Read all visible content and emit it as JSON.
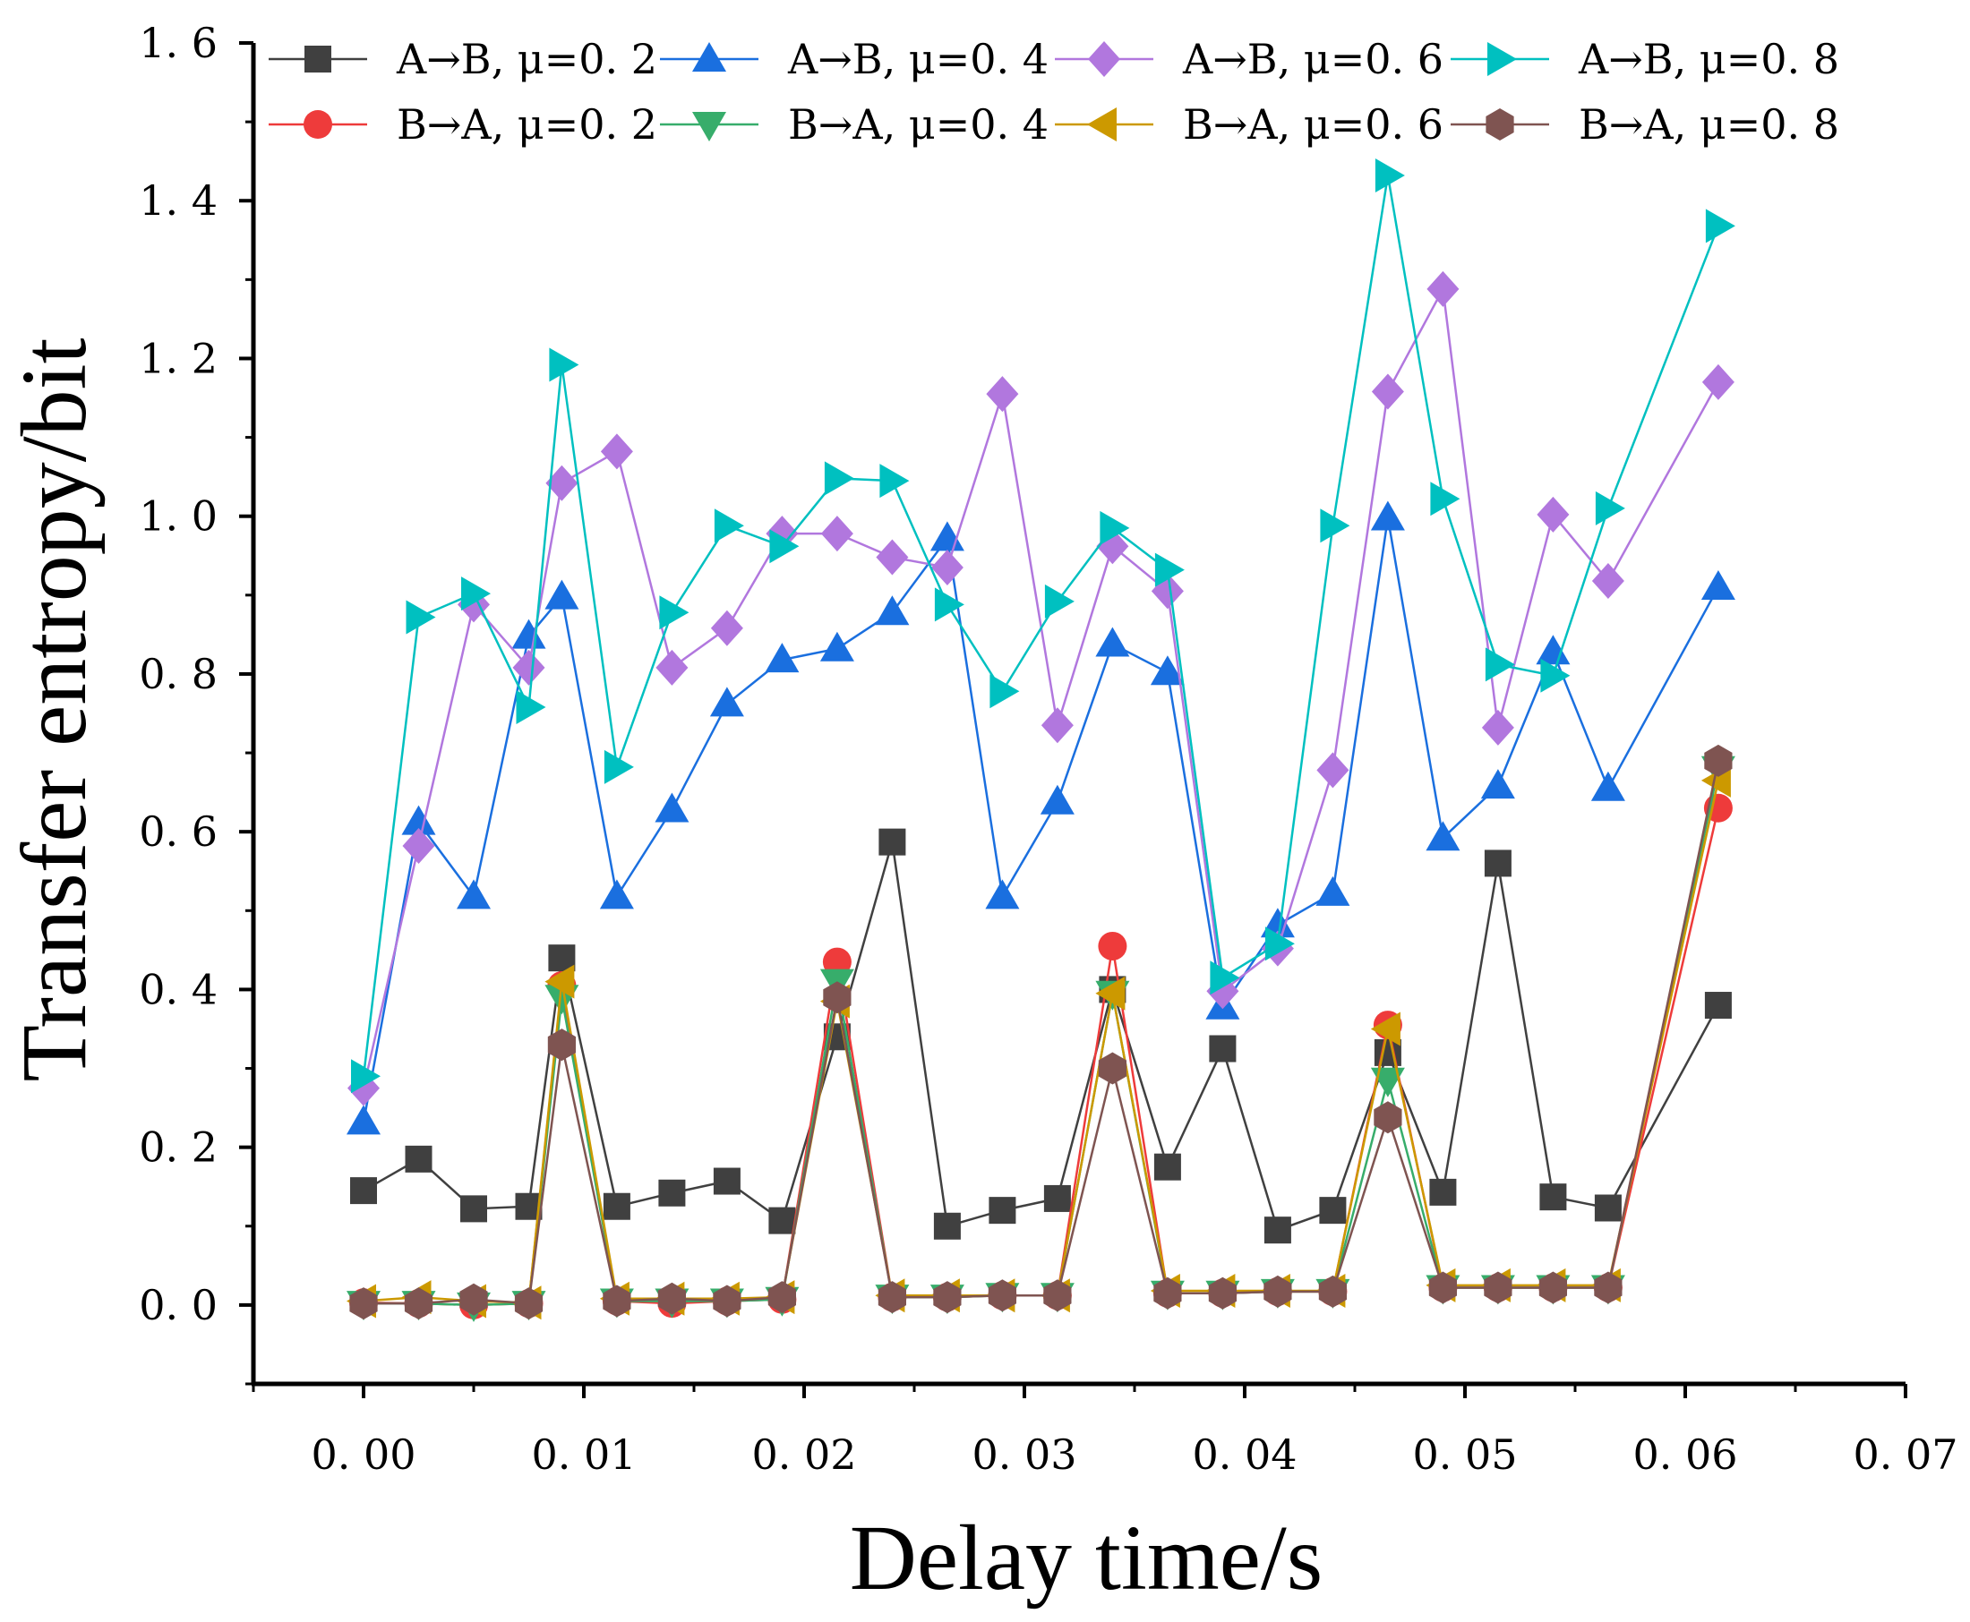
{
  "chart_data": {
    "type": "line",
    "title": "",
    "xlabel": "Delay time/s",
    "ylabel": "Transfer entropy/bit",
    "xlim": [
      -0.005,
      0.07
    ],
    "ylim": [
      -0.1,
      1.6
    ],
    "xticks": [
      0.0,
      0.01,
      0.02,
      0.03,
      0.04,
      0.05,
      0.06,
      0.07
    ],
    "xtick_labels": [
      "0. 00",
      "0. 01",
      "0. 02",
      "0. 03",
      "0. 04",
      "0. 05",
      "0. 06",
      "0. 07"
    ],
    "yticks": [
      0.0,
      0.2,
      0.4,
      0.6,
      0.8,
      1.0,
      1.2,
      1.4,
      1.6
    ],
    "ytick_labels": [
      "0. 0",
      "0. 2",
      "0. 4",
      "0. 6",
      "0. 8",
      "1. 0",
      "1. 2",
      "1. 4",
      "1. 6"
    ],
    "grid": false,
    "legend_position": "top",
    "x": [
      0.0,
      0.0025,
      0.005,
      0.0075,
      0.009,
      0.0115,
      0.014,
      0.0165,
      0.019,
      0.0215,
      0.024,
      0.0265,
      0.029,
      0.0315,
      0.034,
      0.0365,
      0.039,
      0.0415,
      0.044,
      0.0465,
      0.049,
      0.0515,
      0.054,
      0.0565,
      0.0615
    ],
    "series": [
      {
        "name": "A→B, μ=0. 2",
        "color": "#404040",
        "marker": "square",
        "values": [
          0.145,
          0.185,
          0.122,
          0.125,
          0.44,
          0.125,
          0.142,
          0.157,
          0.107,
          0.34,
          0.587,
          0.1,
          0.12,
          0.135,
          0.4,
          0.175,
          0.325,
          0.095,
          0.12,
          0.32,
          0.143,
          0.56,
          0.137,
          0.123,
          0.38
        ]
      },
      {
        "name": "B→A, μ=0. 2",
        "color": "#ee3b3b",
        "marker": "circle",
        "values": [
          0.003,
          0.002,
          0.0,
          0.002,
          0.405,
          0.005,
          0.002,
          0.005,
          0.007,
          0.435,
          0.01,
          0.01,
          0.012,
          0.012,
          0.455,
          0.015,
          0.015,
          0.017,
          0.017,
          0.355,
          0.022,
          0.022,
          0.022,
          0.022,
          0.63
        ]
      },
      {
        "name": "A→B, μ=0. 4",
        "color": "#1a6fdf",
        "marker": "triangle-up",
        "values": [
          0.232,
          0.612,
          0.518,
          0.848,
          0.898,
          0.518,
          0.628,
          0.762,
          0.818,
          0.832,
          0.878,
          0.972,
          0.518,
          0.638,
          0.838,
          0.802,
          0.378,
          0.482,
          0.522,
          0.998,
          0.592,
          0.658,
          0.828,
          0.655,
          0.91
        ]
      },
      {
        "name": "B→A, μ=0. 4",
        "color": "#37ad6b",
        "marker": "triangle-down",
        "values": [
          0.002,
          0.002,
          0.0,
          0.002,
          0.39,
          0.005,
          0.005,
          0.005,
          0.007,
          0.41,
          0.01,
          0.01,
          0.012,
          0.012,
          0.395,
          0.015,
          0.015,
          0.017,
          0.017,
          0.285,
          0.022,
          0.022,
          0.022,
          0.022,
          0.68
        ]
      },
      {
        "name": "A→B, μ=0. 6",
        "color": "#b177de",
        "marker": "diamond",
        "values": [
          0.275,
          0.582,
          0.888,
          0.808,
          1.042,
          1.082,
          0.808,
          0.858,
          0.978,
          0.978,
          0.948,
          0.935,
          1.155,
          0.735,
          0.962,
          0.905,
          0.398,
          0.452,
          0.678,
          1.158,
          1.288,
          0.732,
          1.002,
          0.918,
          1.17
        ]
      },
      {
        "name": "B→A, μ=0. 6",
        "color": "#cc9900",
        "marker": "triangle-left",
        "values": [
          0.005,
          0.01,
          0.005,
          0.003,
          0.41,
          0.008,
          0.008,
          0.008,
          0.01,
          0.385,
          0.012,
          0.012,
          0.012,
          0.012,
          0.395,
          0.018,
          0.018,
          0.018,
          0.018,
          0.35,
          0.025,
          0.025,
          0.025,
          0.025,
          0.665
        ]
      },
      {
        "name": "A→B, μ=0. 8",
        "color": "#00c0c0",
        "marker": "triangle-right",
        "values": [
          0.29,
          0.872,
          0.902,
          0.758,
          1.192,
          0.682,
          0.878,
          0.988,
          0.962,
          1.048,
          1.045,
          0.888,
          0.778,
          0.892,
          0.985,
          0.932,
          0.415,
          0.458,
          0.988,
          1.432,
          1.022,
          0.812,
          0.798,
          1.01,
          1.368
        ]
      },
      {
        "name": "B→A, μ=0. 8",
        "color": "#7f5451",
        "marker": "hexagon",
        "values": [
          0.002,
          0.002,
          0.007,
          0.002,
          0.33,
          0.005,
          0.008,
          0.005,
          0.01,
          0.39,
          0.01,
          0.01,
          0.012,
          0.012,
          0.3,
          0.015,
          0.015,
          0.017,
          0.017,
          0.238,
          0.022,
          0.022,
          0.022,
          0.022,
          0.69
        ]
      }
    ]
  }
}
